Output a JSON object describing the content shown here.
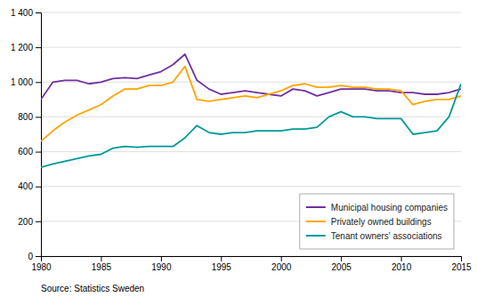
{
  "chart_data": {
    "type": "line",
    "x": [
      1980,
      1981,
      1982,
      1983,
      1984,
      1985,
      1986,
      1987,
      1988,
      1989,
      1990,
      1991,
      1992,
      1993,
      1994,
      1995,
      1996,
      1997,
      1998,
      1999,
      2000,
      2001,
      2002,
      2003,
      2004,
      2005,
      2006,
      2007,
      2008,
      2009,
      2010,
      2011,
      2012,
      2013,
      2014,
      2015
    ],
    "series": [
      {
        "name": "Municipal housing companies",
        "color": "#7030a0",
        "values": [
          900,
          1000,
          1010,
          1010,
          990,
          1000,
          1020,
          1025,
          1020,
          1040,
          1060,
          1100,
          1160,
          1010,
          960,
          930,
          940,
          950,
          940,
          930,
          920,
          960,
          950,
          920,
          940,
          960,
          960,
          960,
          950,
          950,
          940,
          940,
          930,
          930,
          940,
          960
        ]
      },
      {
        "name": "Privately owned buildings",
        "color": "#ffa500",
        "values": [
          660,
          720,
          770,
          810,
          840,
          870,
          920,
          960,
          960,
          980,
          980,
          1000,
          1090,
          900,
          890,
          900,
          910,
          920,
          910,
          930,
          950,
          980,
          990,
          970,
          970,
          980,
          970,
          970,
          960,
          960,
          950,
          870,
          890,
          900,
          900,
          920
        ]
      },
      {
        "name": "Tenant owners' associations",
        "color": "#009999",
        "values": [
          510,
          530,
          545,
          560,
          575,
          585,
          620,
          630,
          625,
          630,
          630,
          630,
          680,
          750,
          710,
          700,
          710,
          710,
          720,
          720,
          720,
          730,
          730,
          740,
          800,
          830,
          800,
          800,
          790,
          790,
          790,
          700,
          710,
          720,
          800,
          990
        ]
      }
    ],
    "xlim": [
      1980,
      2015
    ],
    "xticks": [
      1980,
      1985,
      1990,
      1995,
      2000,
      2005,
      2010,
      2015
    ],
    "ylim": [
      0,
      1400
    ],
    "yticks": [
      0,
      200,
      400,
      600,
      800,
      {
        "value": 1000,
        "label": "1 000"
      },
      {
        "value": 1200,
        "label": "1 200"
      },
      {
        "value": 1400,
        "label": "1 400"
      }
    ],
    "grid": true,
    "legend": "lower right",
    "annotations": [
      "Source: Statistics Sweden"
    ]
  }
}
